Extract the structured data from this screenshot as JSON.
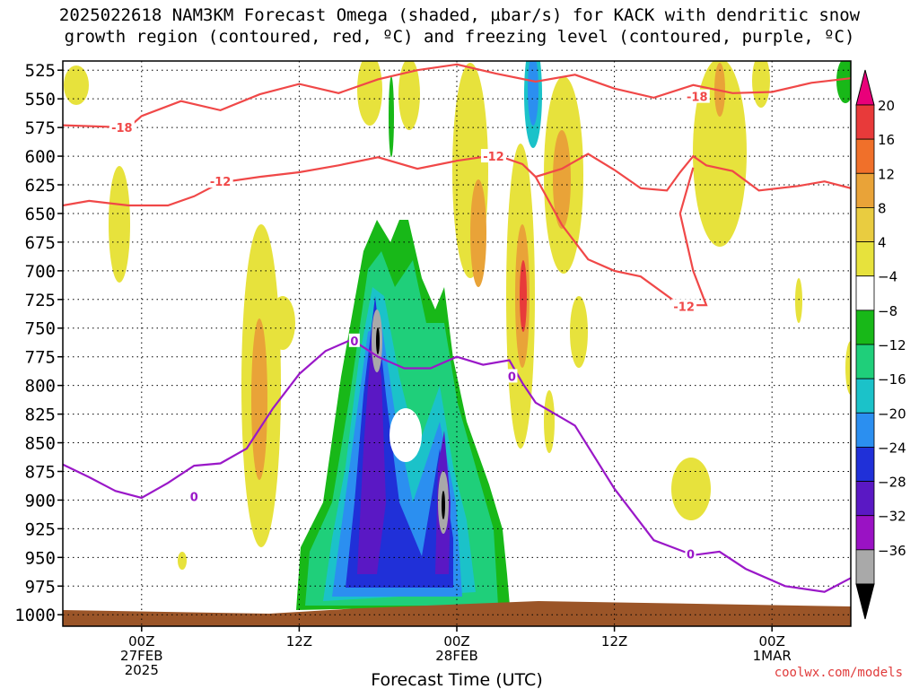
{
  "title": {
    "line1": "2025022618 NAM3KM Forecast Omega (shaded, µbar/s) for KACK with dendritic snow",
    "line2": "growth region (contoured, red, ºC) and freezing level (contoured, purple, ºC)"
  },
  "credit": "coolwx.com/models",
  "chart_data": {
    "type": "heatmap",
    "title": "2025022618 NAM3KM Forecast Omega (shaded, µbar/s) for KACK with dendritic snow growth region (contoured, red, ºC) and freezing level (contoured, purple, ºC)",
    "xlabel": "Forecast Time (UTC)",
    "ylabel": "",
    "y_axis": {
      "inverted": true,
      "ticks": [
        525,
        550,
        575,
        600,
        625,
        650,
        675,
        700,
        725,
        750,
        775,
        800,
        825,
        850,
        875,
        900,
        925,
        950,
        975,
        1000
      ],
      "range": [
        1010,
        517
      ]
    },
    "x_axis": {
      "range_hours": [
        -6,
        54
      ],
      "ticks": [
        {
          "hour": 0,
          "label": [
            "00Z",
            "27FEB",
            "2025"
          ]
        },
        {
          "hour": 12,
          "label": [
            "12Z"
          ]
        },
        {
          "hour": 24,
          "label": [
            "00Z",
            "28FEB"
          ]
        },
        {
          "hour": 36,
          "label": [
            "12Z"
          ]
        },
        {
          "hour": 48,
          "label": [
            "00Z",
            "1MAR"
          ]
        }
      ]
    },
    "grid": true,
    "colorbar": {
      "labels": [
        "20",
        "16",
        "12",
        "8",
        "4",
        "−4",
        "−8",
        "−12",
        "−16",
        "−20",
        "−24",
        "−28",
        "−32",
        "−36"
      ],
      "colors": [
        "#e83a3a",
        "#f0702a",
        "#e9a338",
        "#e9cc40",
        "#e7e23c",
        "#ffffff",
        "#18b818",
        "#1fcf7a",
        "#1bc2c9",
        "#2b8ff0",
        "#2030d8",
        "#5a18c4",
        "#9a12c4",
        "#a9a9a9"
      ],
      "upper_arrow_color": "#e9007a",
      "lower_arrow_color": "#000000"
    },
    "contours": {
      "dendritic_red": [
        {
          "level": -18,
          "label": "-18"
        },
        {
          "level": -12,
          "label": "-12"
        }
      ],
      "freezing_purple": [
        {
          "level": 0,
          "label": "0"
        }
      ],
      "red_points_m18": [
        [
          -6,
          573
        ],
        [
          -1,
          575
        ],
        [
          0,
          565
        ],
        [
          3,
          552
        ],
        [
          6,
          560
        ],
        [
          9,
          546
        ],
        [
          12,
          537
        ],
        [
          15,
          545
        ],
        [
          18,
          533
        ],
        [
          21,
          525
        ],
        [
          24,
          520
        ],
        [
          27,
          528
        ],
        [
          30,
          535
        ],
        [
          33,
          529
        ],
        [
          36,
          541
        ],
        [
          39,
          549
        ],
        [
          42,
          538
        ],
        [
          45,
          545
        ],
        [
          48,
          544
        ],
        [
          51,
          536
        ],
        [
          54,
          532
        ]
      ],
      "red_points_m12": [
        [
          -6,
          643
        ],
        [
          -4,
          639
        ],
        [
          -1,
          643
        ],
        [
          2,
          643
        ],
        [
          4,
          635
        ],
        [
          6,
          623
        ],
        [
          9,
          618
        ],
        [
          12,
          614
        ],
        [
          15,
          608
        ],
        [
          18,
          601
        ],
        [
          21,
          611
        ],
        [
          24,
          604
        ],
        [
          27,
          599
        ],
        [
          29,
          607
        ],
        [
          30,
          618
        ],
        [
          32,
          611
        ],
        [
          34,
          598
        ],
        [
          36,
          612
        ],
        [
          38,
          628
        ],
        [
          40,
          630
        ],
        [
          41,
          614
        ],
        [
          42,
          600
        ],
        [
          43,
          608
        ],
        [
          45,
          613
        ],
        [
          47,
          630
        ],
        [
          50,
          626
        ],
        [
          52,
          622
        ],
        [
          54,
          628
        ]
      ],
      "red_points_m12_lower": [
        [
          30,
          618
        ],
        [
          32,
          660
        ],
        [
          34,
          690
        ],
        [
          36,
          700
        ],
        [
          38,
          705
        ],
        [
          41,
          730
        ],
        [
          43,
          730
        ],
        [
          42,
          700
        ],
        [
          41,
          650
        ],
        [
          42,
          610
        ]
      ],
      "purple_points_0": [
        [
          -6,
          869
        ],
        [
          -4,
          880
        ],
        [
          -2,
          892
        ],
        [
          0,
          898
        ],
        [
          2,
          885
        ],
        [
          4,
          870
        ],
        [
          6,
          868
        ],
        [
          8,
          855
        ],
        [
          10,
          820
        ],
        [
          12,
          790
        ],
        [
          14,
          770
        ],
        [
          16,
          760
        ],
        [
          18,
          775
        ],
        [
          20,
          785
        ],
        [
          22,
          785
        ],
        [
          24,
          775
        ],
        [
          26,
          782
        ],
        [
          28,
          778
        ],
        [
          29,
          798
        ],
        [
          30,
          815
        ],
        [
          33,
          835
        ],
        [
          36,
          890
        ],
        [
          39,
          935
        ],
        [
          42,
          948
        ],
        [
          44,
          945
        ],
        [
          46,
          960
        ],
        [
          49,
          975
        ],
        [
          52,
          980
        ],
        [
          54,
          968
        ]
      ],
      "points_note": "[forecast hour, pressure hPa]"
    },
    "omega_extremes": {
      "min_value_label": "−36",
      "max_value_label": "20"
    }
  }
}
